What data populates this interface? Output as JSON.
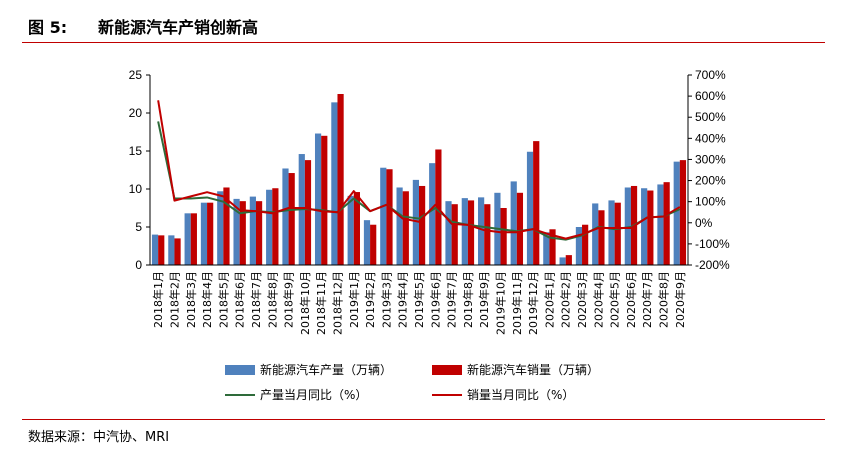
{
  "header": {
    "figure_label": "图 5:",
    "title": "新能源汽车产销创新高"
  },
  "footer": {
    "source": "数据来源：中汽协、MRI"
  },
  "chart_data": {
    "type": "bar",
    "categories": [
      "2018年1月",
      "2018年2月",
      "2018年3月",
      "2018年4月",
      "2018年5月",
      "2018年6月",
      "2018年7月",
      "2018年8月",
      "2018年9月",
      "2018年10月",
      "2018年11月",
      "2018年12月",
      "2019年1月",
      "2019年2月",
      "2019年3月",
      "2019年4月",
      "2019年5月",
      "2019年6月",
      "2019年7月",
      "2019年8月",
      "2019年9月",
      "2019年10月",
      "2019年11月",
      "2019年12月",
      "2020年1月",
      "2020年2月",
      "2020年3月",
      "2020年4月",
      "2020年5月",
      "2020年6月",
      "2020年7月",
      "2020年8月",
      "2020年9月"
    ],
    "series": [
      {
        "name": "新能源汽车产量（万辆）",
        "kind": "bar",
        "axis": "left",
        "color": "#4f81bd",
        "values": [
          4.0,
          3.9,
          6.8,
          8.2,
          9.7,
          8.7,
          9.0,
          9.9,
          12.7,
          14.6,
          17.3,
          21.4,
          9.1,
          5.9,
          12.8,
          10.2,
          11.2,
          13.4,
          8.4,
          8.8,
          8.9,
          9.5,
          11.0,
          14.9,
          4.3,
          1.0,
          5.0,
          8.1,
          8.5,
          10.2,
          10.1,
          10.6,
          13.6
        ]
      },
      {
        "name": "新能源汽车销量（万辆）",
        "kind": "bar",
        "axis": "left",
        "color": "#c00000",
        "values": [
          3.9,
          3.5,
          6.8,
          8.2,
          10.2,
          8.4,
          8.4,
          10.1,
          12.1,
          13.8,
          17.0,
          22.5,
          9.6,
          5.3,
          12.6,
          9.7,
          10.4,
          15.2,
          8.0,
          8.5,
          8.0,
          7.5,
          9.5,
          16.3,
          4.7,
          1.3,
          5.3,
          7.2,
          8.2,
          10.4,
          9.8,
          10.9,
          13.8
        ]
      },
      {
        "name": "产量当月同比（%）",
        "kind": "line",
        "axis": "right",
        "color": "#2e6b3a",
        "values": [
          480,
          115,
          115,
          120,
          100,
          45,
          55,
          50,
          60,
          65,
          60,
          50,
          115,
          55,
          85,
          30,
          20,
          70,
          5,
          -10,
          -20,
          -30,
          -40,
          -30,
          -70,
          -80,
          -60,
          -20,
          -30,
          -20,
          25,
          30,
          65
        ]
      },
      {
        "name": "销量当月同比（%）",
        "kind": "line",
        "axis": "right",
        "color": "#c00000",
        "values": [
          580,
          105,
          125,
          145,
          125,
          60,
          55,
          45,
          70,
          70,
          55,
          50,
          150,
          55,
          85,
          20,
          5,
          85,
          -5,
          -10,
          -35,
          -45,
          -45,
          -30,
          -55,
          -75,
          -55,
          -25,
          -25,
          -25,
          25,
          30,
          75
        ]
      }
    ],
    "y_left": {
      "min": 0,
      "max": 25,
      "ticks": [
        "0",
        "5",
        "10",
        "15",
        "20",
        "25"
      ]
    },
    "y_right": {
      "min": -200,
      "max": 700,
      "ticks": [
        "-200%",
        "-100%",
        "0%",
        "100%",
        "200%",
        "300%",
        "400%",
        "500%",
        "600%",
        "700%"
      ]
    },
    "grid": false,
    "legend_position": "bottom"
  }
}
